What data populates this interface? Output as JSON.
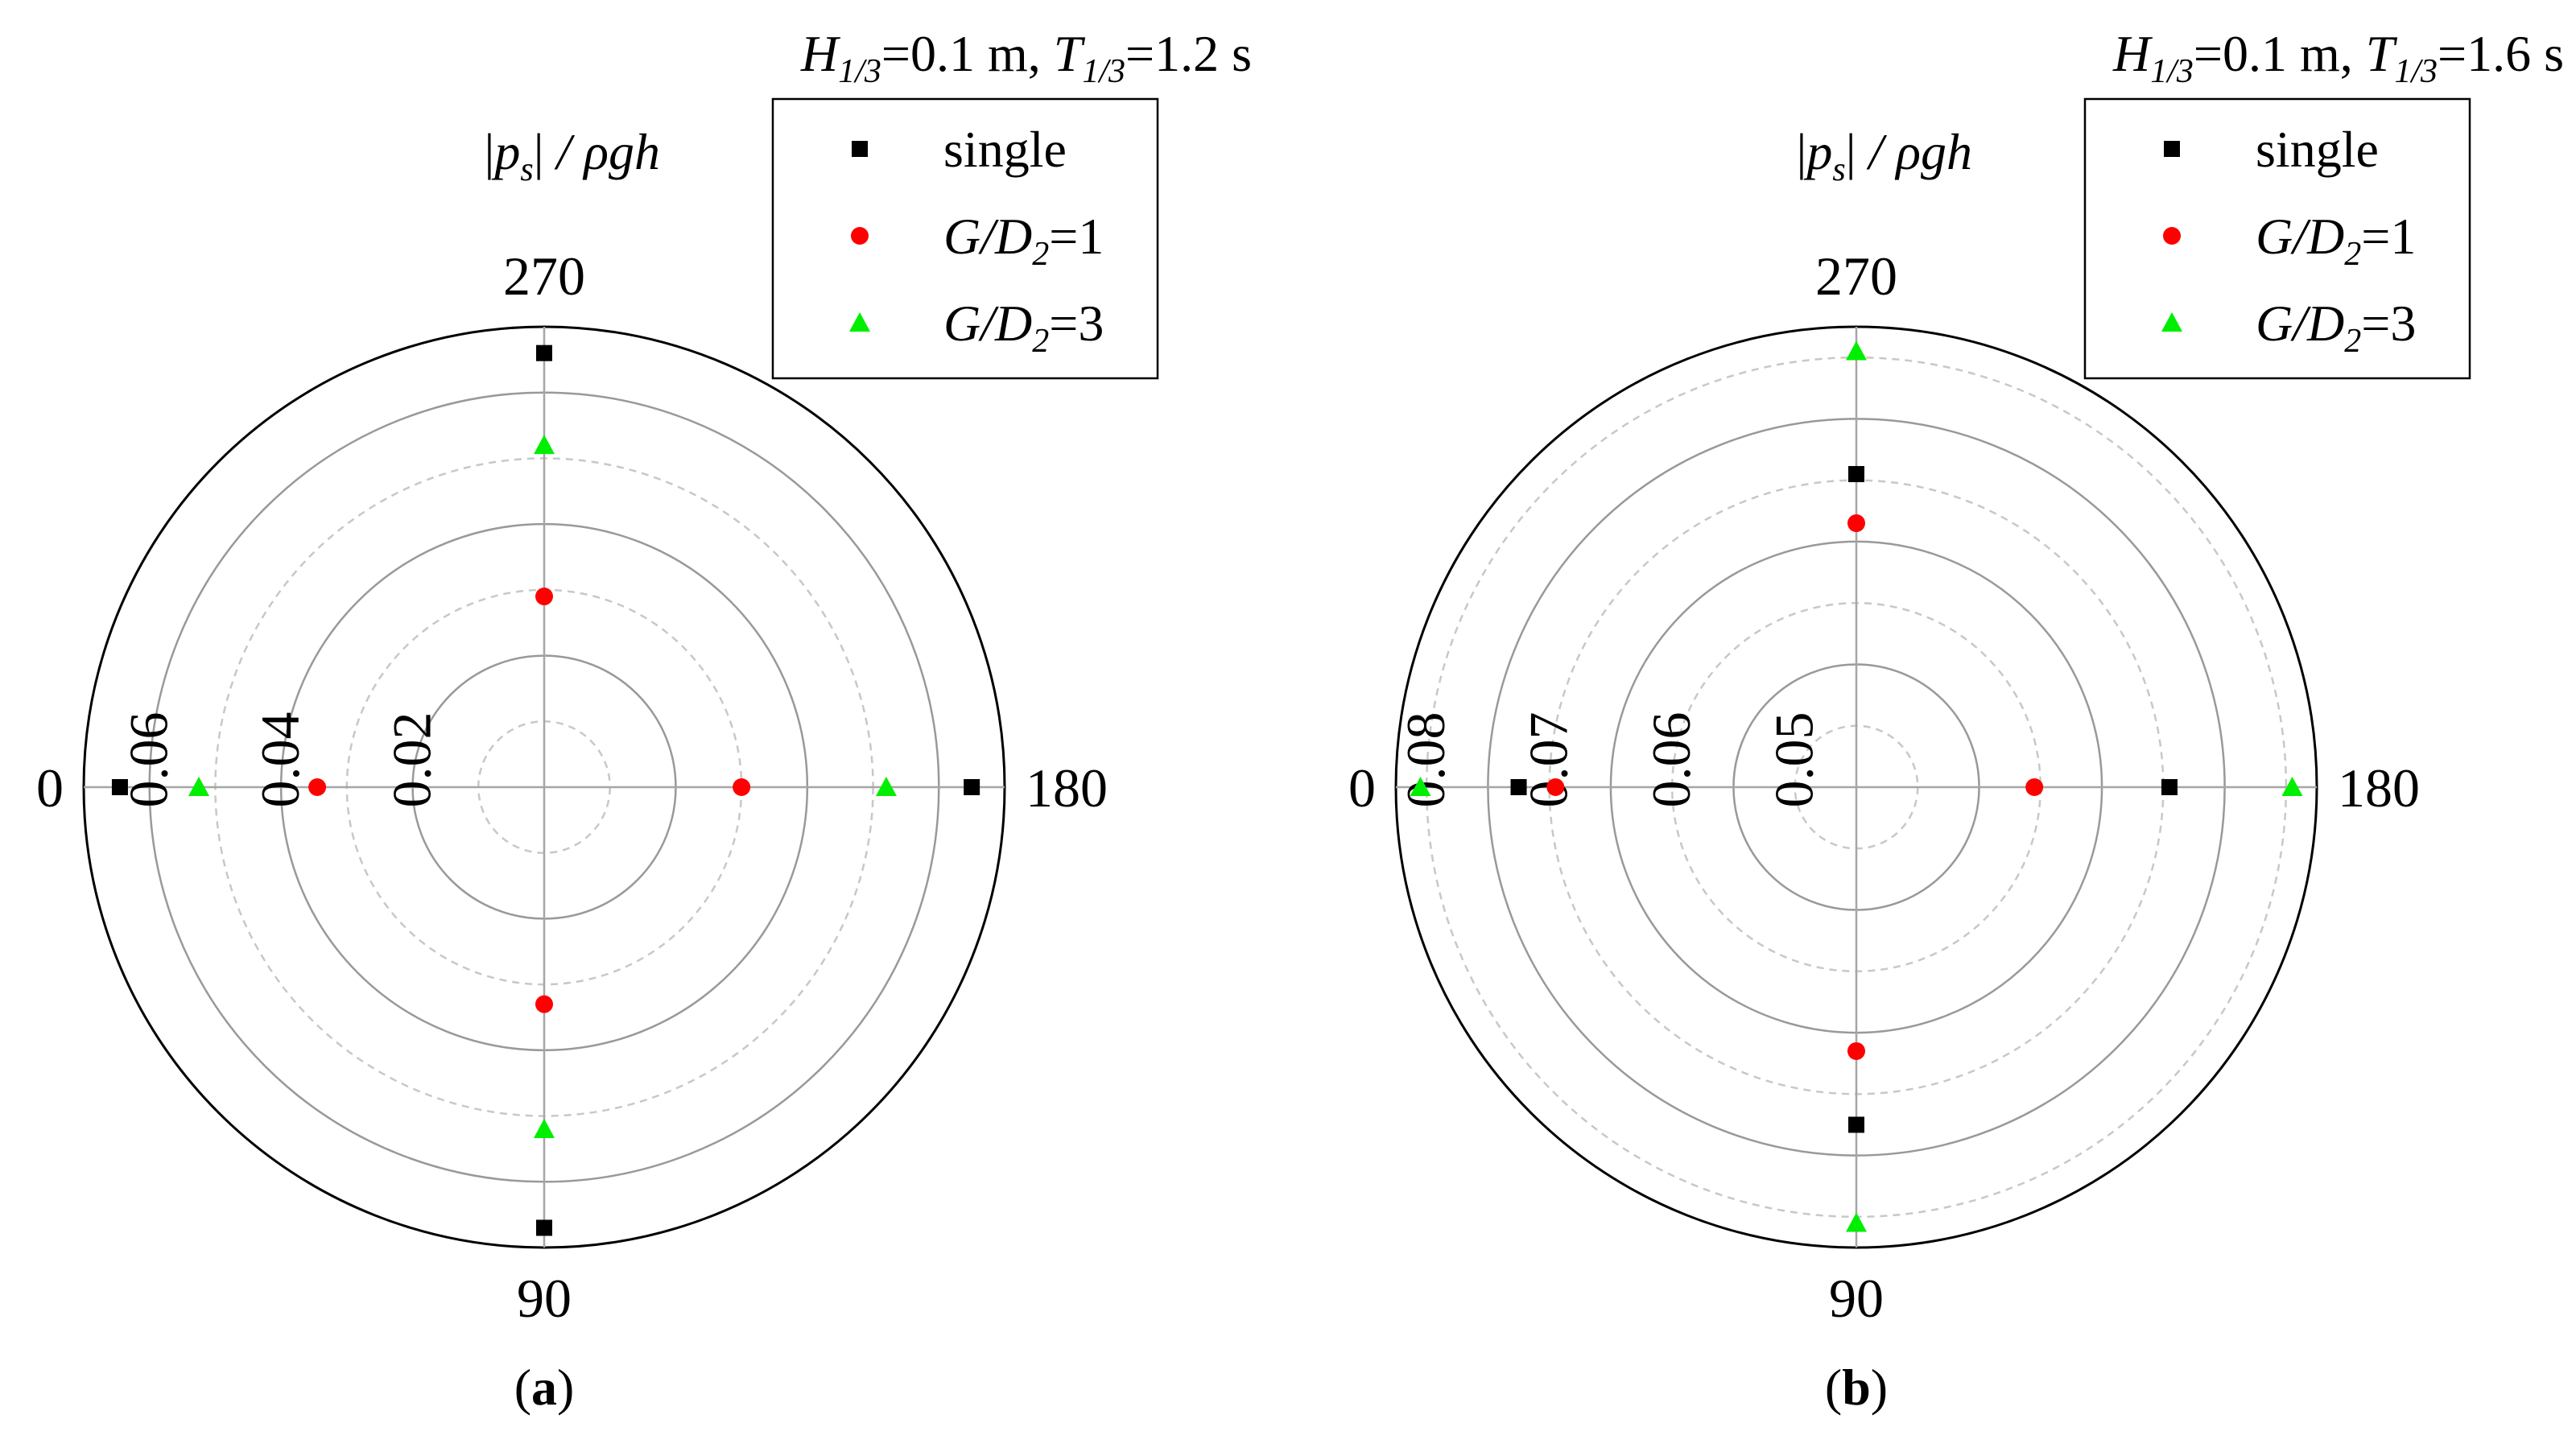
{
  "colors": {
    "single": "#000000",
    "gd1": "#ff0000",
    "gd3": "#00ee00",
    "outer_ring": "#000000",
    "solid_ring": "#999999",
    "dashed_ring": "#c8c8c8"
  },
  "chart_data": [
    {
      "type": "scatter",
      "coordinate_system": "polar",
      "panel_label": "a",
      "condition": {
        "H_sub": "1/3",
        "H_value": "=0.1 m, ",
        "T_sub": "1/3",
        "T_value": "=1.2 s"
      },
      "radial_label": {
        "p_sub": "s",
        "rest": " / ρgh"
      },
      "radial_range": [
        0,
        0.07
      ],
      "radial_ticks": [
        0.02,
        0.04,
        0.06
      ],
      "radial_tick_labels": [
        "0.02",
        "0.04",
        "0.06"
      ],
      "rings": [
        {
          "r": 0.01,
          "style": "dashed"
        },
        {
          "r": 0.02,
          "style": "solid"
        },
        {
          "r": 0.03,
          "style": "dashed"
        },
        {
          "r": 0.04,
          "style": "solid"
        },
        {
          "r": 0.05,
          "style": "dashed"
        },
        {
          "r": 0.06,
          "style": "solid"
        },
        {
          "r": 0.07,
          "style": "outer"
        }
      ],
      "angle_labels": [
        "0",
        "90",
        "180",
        "270"
      ],
      "legend": [
        {
          "name": "single",
          "marker": "square",
          "color_key": "single"
        },
        {
          "name_italic": "G/D",
          "name_sub": "2",
          "name_suffix": "=1",
          "marker": "circle",
          "color_key": "gd1"
        },
        {
          "name_italic": "G/D",
          "name_sub": "2",
          "name_suffix": "=3",
          "marker": "triangle",
          "color_key": "gd3"
        }
      ],
      "series": [
        {
          "key": "single",
          "angles": [
            0,
            90,
            180,
            270
          ],
          "values": [
            0.0645,
            0.067,
            0.065,
            0.066
          ]
        },
        {
          "key": "gd1",
          "angles": [
            0,
            90,
            180,
            270
          ],
          "values": [
            0.0345,
            0.033,
            0.03,
            0.029
          ]
        },
        {
          "key": "gd3",
          "angles": [
            0,
            90,
            180,
            270
          ],
          "values": [
            0.0525,
            0.052,
            0.052,
            0.052
          ]
        }
      ]
    },
    {
      "type": "scatter",
      "coordinate_system": "polar",
      "panel_label": "b",
      "condition": {
        "H_sub": "1/3",
        "H_value": "=0.1 m, ",
        "T_sub": "1/3",
        "T_value": "=1.6 s"
      },
      "radial_label": {
        "p_sub": "s",
        "rest": " / ρgh"
      },
      "radial_range": [
        0.045,
        0.0825
      ],
      "radial_ticks": [
        0.05,
        0.06,
        0.07,
        0.08
      ],
      "radial_tick_labels": [
        "0.05",
        "0.06",
        "0.07",
        "0.08"
      ],
      "rings": [
        {
          "r": 0.05,
          "style": "dashed"
        },
        {
          "r": 0.055,
          "style": "solid"
        },
        {
          "r": 0.06,
          "style": "dashed"
        },
        {
          "r": 0.065,
          "style": "solid"
        },
        {
          "r": 0.07,
          "style": "dashed"
        },
        {
          "r": 0.075,
          "style": "solid"
        },
        {
          "r": 0.08,
          "style": "dashed"
        },
        {
          "r": 0.0825,
          "style": "outer"
        }
      ],
      "angle_labels": [
        "0",
        "90",
        "180",
        "270"
      ],
      "legend": [
        {
          "name": "single",
          "marker": "square",
          "color_key": "single"
        },
        {
          "name_italic": "G/D",
          "name_sub": "2",
          "name_suffix": "=1",
          "marker": "circle",
          "color_key": "gd1"
        },
        {
          "name_italic": "G/D",
          "name_sub": "2",
          "name_suffix": "=3",
          "marker": "triangle",
          "color_key": "gd3"
        }
      ],
      "series": [
        {
          "key": "single",
          "angles": [
            0,
            90,
            180,
            270
          ],
          "values": [
            0.0725,
            0.0725,
            0.0705,
            0.0705
          ]
        },
        {
          "key": "gd1",
          "angles": [
            0,
            90,
            180,
            270
          ],
          "values": [
            0.0695,
            0.0665,
            0.0595,
            0.0665
          ]
        },
        {
          "key": "gd3",
          "angles": [
            0,
            90,
            180,
            270
          ],
          "values": [
            0.0805,
            0.0805,
            0.0805,
            0.0805
          ]
        }
      ]
    }
  ]
}
